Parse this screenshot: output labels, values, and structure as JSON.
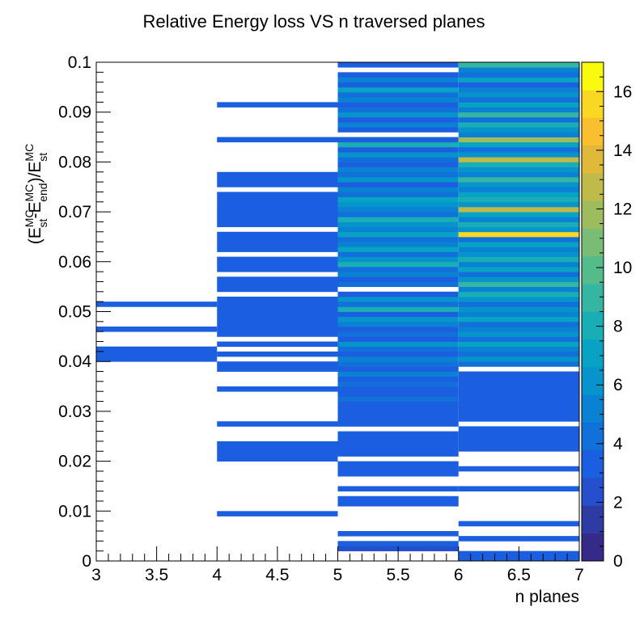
{
  "chart_data": {
    "type": "heatmap",
    "title": "Relative Energy loss VS n traversed planes",
    "xlabel": "n planes",
    "ylabel": {
      "open": "(E",
      "sup1": "MC",
      "sub1": "st",
      "minus": "-E",
      "sup2": "MC",
      "sub2": "end",
      "mid": ")/E",
      "sup3": "MC",
      "sub3": "st"
    },
    "xlim": [
      3,
      7
    ],
    "ylim": [
      0,
      0.1
    ],
    "x_ticks": [
      "3",
      "3.5",
      "4",
      "4.5",
      "5",
      "5.5",
      "6",
      "6.5",
      "7"
    ],
    "y_ticks": [
      "0",
      "0.01",
      "0.02",
      "0.03",
      "0.04",
      "0.05",
      "0.06",
      "0.07",
      "0.08",
      "0.09",
      "0.1"
    ],
    "z_range": [
      0,
      17
    ],
    "z_ticks": [
      "0",
      "2",
      "4",
      "6",
      "8",
      "10",
      "12",
      "14",
      "16"
    ],
    "colormap": [
      "#352a87",
      "#2e3ba2",
      "#2450cd",
      "#1b5fe0",
      "#1170da",
      "#0a82d3",
      "#0793cc",
      "#08a2c5",
      "#19aeb5",
      "#34b6a2",
      "#54bb8b",
      "#78bc75",
      "#9cbc5d",
      "#c0ba4a",
      "#e0b93b",
      "#f8bf2f",
      "#f8d823",
      "#f9fa0e"
    ],
    "x_bin_edges": [
      3,
      4,
      5,
      6,
      7
    ],
    "y_bin_width": 0.001,
    "columns": [
      {
        "x_range": [
          3,
          4
        ],
        "cells": [
          [
            40,
            3
          ],
          [
            41,
            3
          ],
          [
            42,
            3
          ],
          [
            46,
            3
          ],
          [
            51,
            3
          ]
        ]
      },
      {
        "x_range": [
          4,
          5
        ],
        "cells": [
          [
            9,
            3
          ],
          [
            20,
            3
          ],
          [
            21,
            3
          ],
          [
            22,
            3
          ],
          [
            23,
            3
          ],
          [
            27,
            3
          ],
          [
            34,
            3
          ],
          [
            38,
            3
          ],
          [
            39,
            3
          ],
          [
            41,
            3
          ],
          [
            43,
            3
          ],
          [
            45,
            3
          ],
          [
            46,
            3
          ],
          [
            47,
            3
          ],
          [
            48,
            3
          ],
          [
            49,
            3
          ],
          [
            50,
            3
          ],
          [
            51,
            3
          ],
          [
            52,
            3
          ],
          [
            54,
            3
          ],
          [
            55,
            3
          ],
          [
            56,
            3
          ],
          [
            58,
            3
          ],
          [
            59,
            3
          ],
          [
            60,
            3
          ],
          [
            62,
            3
          ],
          [
            63,
            3
          ],
          [
            64,
            3
          ],
          [
            65,
            3
          ],
          [
            67,
            3
          ],
          [
            68,
            3
          ],
          [
            69,
            3
          ],
          [
            70,
            3
          ],
          [
            71,
            3
          ],
          [
            72,
            3
          ],
          [
            73,
            3
          ],
          [
            75,
            3
          ],
          [
            76,
            3
          ],
          [
            77,
            3
          ],
          [
            84,
            3
          ],
          [
            91,
            3
          ]
        ]
      },
      {
        "x_range": [
          5,
          6
        ],
        "cells": [
          [
            2,
            2
          ],
          [
            3,
            3
          ],
          [
            5,
            3
          ],
          [
            11,
            3
          ],
          [
            12,
            3
          ],
          [
            14,
            3
          ],
          [
            17,
            3
          ],
          [
            18,
            3
          ],
          [
            19,
            3
          ],
          [
            21,
            3
          ],
          [
            22,
            3
          ],
          [
            23,
            3
          ],
          [
            24,
            3
          ],
          [
            25,
            3
          ],
          [
            27,
            3
          ],
          [
            28,
            3
          ],
          [
            29,
            3
          ],
          [
            30,
            3
          ],
          [
            31,
            3
          ],
          [
            32,
            4
          ],
          [
            33,
            3
          ],
          [
            34,
            3
          ],
          [
            35,
            4
          ],
          [
            36,
            3
          ],
          [
            37,
            5
          ],
          [
            38,
            3
          ],
          [
            39,
            4
          ],
          [
            40,
            5
          ],
          [
            41,
            3
          ],
          [
            42,
            4
          ],
          [
            43,
            6
          ],
          [
            44,
            3
          ],
          [
            45,
            4
          ],
          [
            46,
            3
          ],
          [
            47,
            5
          ],
          [
            48,
            6
          ],
          [
            49,
            3
          ],
          [
            50,
            8
          ],
          [
            51,
            4
          ],
          [
            52,
            6
          ],
          [
            53,
            3
          ],
          [
            55,
            4
          ],
          [
            56,
            3
          ],
          [
            57,
            5
          ],
          [
            58,
            4
          ],
          [
            59,
            8
          ],
          [
            60,
            6
          ],
          [
            61,
            4
          ],
          [
            62,
            7
          ],
          [
            63,
            5
          ],
          [
            64,
            4
          ],
          [
            65,
            7
          ],
          [
            66,
            5
          ],
          [
            67,
            6
          ],
          [
            68,
            8
          ],
          [
            69,
            4
          ],
          [
            70,
            5
          ],
          [
            71,
            6
          ],
          [
            72,
            7
          ],
          [
            73,
            4
          ],
          [
            74,
            5
          ],
          [
            75,
            3
          ],
          [
            76,
            6
          ],
          [
            77,
            4
          ],
          [
            78,
            5
          ],
          [
            79,
            3
          ],
          [
            80,
            4
          ],
          [
            81,
            6
          ],
          [
            82,
            3
          ],
          [
            83,
            8
          ],
          [
            84,
            3
          ],
          [
            86,
            3
          ],
          [
            87,
            5
          ],
          [
            88,
            3
          ],
          [
            89,
            6
          ],
          [
            90,
            4
          ],
          [
            91,
            3
          ],
          [
            92,
            5
          ],
          [
            93,
            4
          ],
          [
            94,
            7
          ],
          [
            95,
            3
          ],
          [
            96,
            5
          ],
          [
            97,
            3
          ],
          [
            99,
            3
          ]
        ]
      },
      {
        "x_range": [
          6,
          7
        ],
        "cells": [
          [
            0,
            3
          ],
          [
            1,
            3
          ],
          [
            4,
            3
          ],
          [
            7,
            3
          ],
          [
            14,
            3
          ],
          [
            18,
            3
          ],
          [
            22,
            3
          ],
          [
            23,
            3
          ],
          [
            24,
            3
          ],
          [
            25,
            3
          ],
          [
            26,
            3
          ],
          [
            28,
            3
          ],
          [
            29,
            3
          ],
          [
            30,
            3
          ],
          [
            31,
            3
          ],
          [
            32,
            3
          ],
          [
            33,
            3
          ],
          [
            34,
            3
          ],
          [
            35,
            3
          ],
          [
            36,
            3
          ],
          [
            37,
            3
          ],
          [
            39,
            4
          ],
          [
            40,
            6
          ],
          [
            41,
            4
          ],
          [
            42,
            5
          ],
          [
            43,
            7
          ],
          [
            44,
            4
          ],
          [
            45,
            6
          ],
          [
            46,
            5
          ],
          [
            47,
            4
          ],
          [
            48,
            7
          ],
          [
            49,
            5
          ],
          [
            50,
            6
          ],
          [
            51,
            4
          ],
          [
            52,
            6
          ],
          [
            53,
            8
          ],
          [
            54,
            5
          ],
          [
            55,
            9
          ],
          [
            56,
            6
          ],
          [
            57,
            4
          ],
          [
            58,
            7
          ],
          [
            59,
            5
          ],
          [
            60,
            8
          ],
          [
            61,
            6
          ],
          [
            62,
            5
          ],
          [
            63,
            7
          ],
          [
            64,
            4
          ],
          [
            65,
            16
          ],
          [
            66,
            6
          ],
          [
            67,
            8
          ],
          [
            68,
            5
          ],
          [
            69,
            7
          ],
          [
            70,
            13
          ],
          [
            71,
            6
          ],
          [
            72,
            8
          ],
          [
            73,
            7
          ],
          [
            74,
            5
          ],
          [
            75,
            6
          ],
          [
            76,
            9
          ],
          [
            77,
            5
          ],
          [
            78,
            6
          ],
          [
            79,
            8
          ],
          [
            80,
            13
          ],
          [
            81,
            6
          ],
          [
            82,
            4
          ],
          [
            83,
            7
          ],
          [
            84,
            12
          ],
          [
            85,
            5
          ],
          [
            86,
            6
          ],
          [
            87,
            8
          ],
          [
            88,
            4
          ],
          [
            89,
            9
          ],
          [
            90,
            5
          ],
          [
            91,
            7
          ],
          [
            92,
            4
          ],
          [
            93,
            6
          ],
          [
            94,
            5
          ],
          [
            95,
            3
          ],
          [
            96,
            7
          ],
          [
            97,
            4
          ],
          [
            98,
            5
          ],
          [
            99,
            9
          ]
        ]
      }
    ]
  }
}
